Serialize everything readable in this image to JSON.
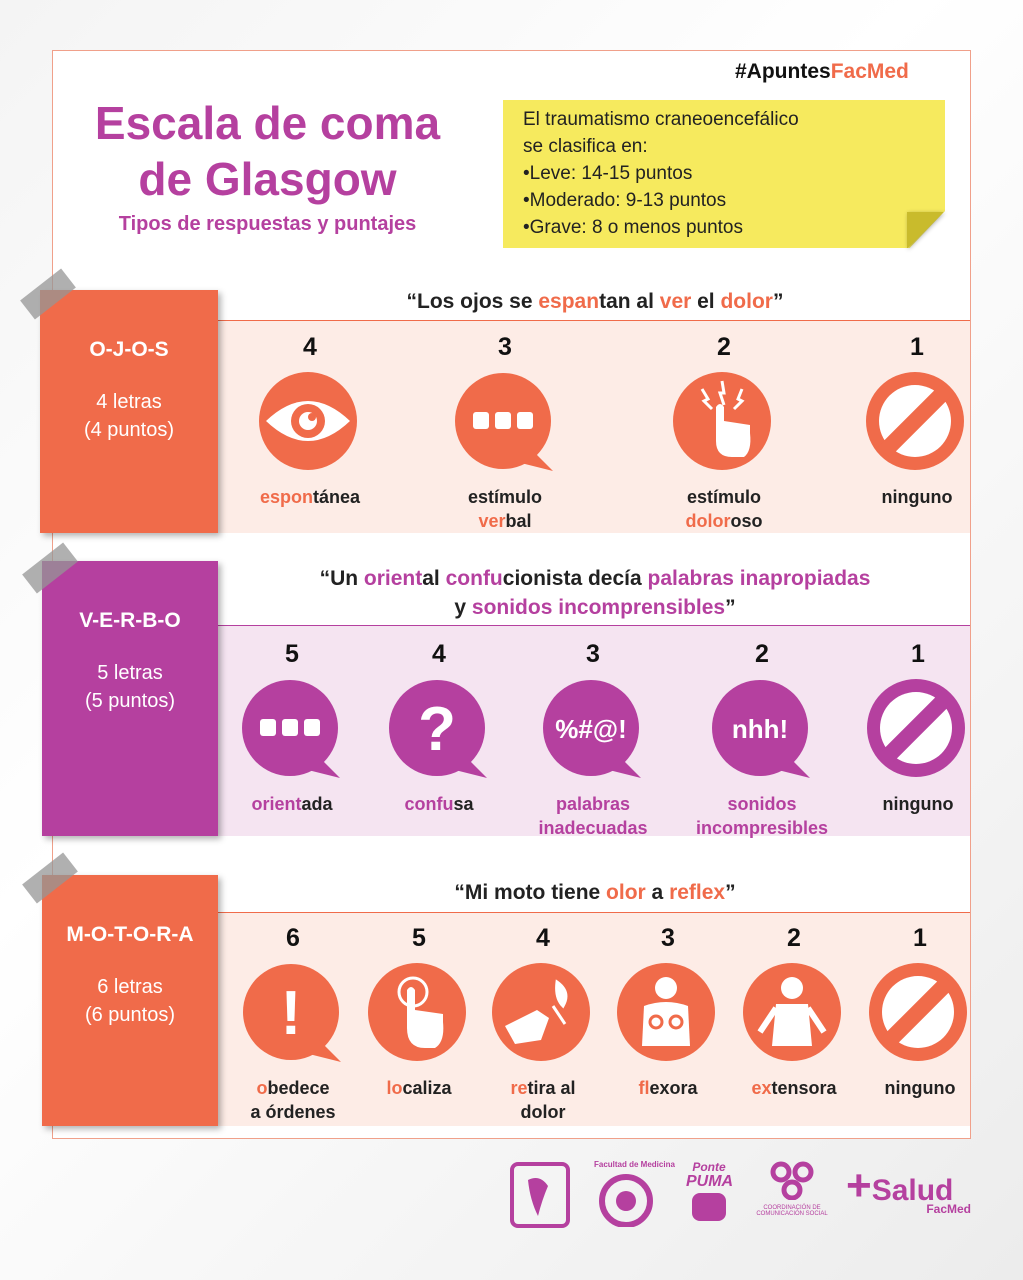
{
  "hashtag": [
    {
      "t": "#Apuntes",
      "c": "#111111"
    },
    {
      "t": "FacMed",
      "c": "#f06b4a"
    }
  ],
  "title": [
    "Escala de coma",
    "de Glasgow"
  ],
  "subtitle": "Tipos de respuestas y puntajes",
  "note": [
    "El traumatismo craneoencefálico",
    "se clasifica en:",
    "•Leve: 14-15 puntos",
    "•Moderado: 9-13 puntos",
    "•Grave: 8 o menos puntos"
  ],
  "colors": {
    "orange": "#f06b4a",
    "purple": "#b5409f",
    "note": "#f6ea5e",
    "orange_band": "#fdece6",
    "purple_band": "#f5e4f1"
  },
  "sections": [
    {
      "key": "ojos",
      "word": "O-J-O-S",
      "letters": "4 letras",
      "points": "(4 puntos)",
      "color": "#f06b4a",
      "band": "#fdece6",
      "quote": [
        [
          {
            "t": "“Los ojos se "
          },
          {
            "t": "espan",
            "h": 1
          },
          {
            "t": "tan al "
          },
          {
            "t": "ver",
            "h": 1
          },
          {
            "t": " el "
          },
          {
            "t": "dolor",
            "h": 1
          },
          {
            "t": "”"
          }
        ]
      ],
      "items": [
        {
          "score": "4",
          "icon": "eye-icon",
          "label": [
            [
              {
                "t": "espon",
                "h": 1
              },
              {
                "t": "tánea"
              }
            ]
          ]
        },
        {
          "score": "3",
          "icon": "speech-bubble-icon",
          "label": [
            [
              {
                "t": "estímulo"
              }
            ],
            [
              {
                "t": "ver",
                "h": 1
              },
              {
                "t": "bal"
              }
            ]
          ]
        },
        {
          "score": "2",
          "icon": "pain-hand-icon",
          "label": [
            [
              {
                "t": "estímulo"
              }
            ],
            [
              {
                "t": "dolor",
                "h": 1
              },
              {
                "t": "oso"
              }
            ]
          ]
        },
        {
          "score": "1",
          "icon": "no-icon",
          "label": [
            [
              {
                "t": "ninguno"
              }
            ]
          ]
        }
      ]
    },
    {
      "key": "verbo",
      "word": "V-E-R-B-O",
      "letters": "5 letras",
      "points": "(5 puntos)",
      "color": "#b5409f",
      "band": "#f5e4f1",
      "quote": [
        [
          {
            "t": "“Un "
          },
          {
            "t": "orient",
            "h": 1
          },
          {
            "t": "al "
          },
          {
            "t": "confu",
            "h": 1
          },
          {
            "t": "cionista decía "
          },
          {
            "t": "palabras inapropiadas",
            "h": 1
          }
        ],
        [
          {
            "t": "y "
          },
          {
            "t": "sonidos incomprensibles",
            "h": 1
          },
          {
            "t": "”"
          }
        ]
      ],
      "items": [
        {
          "score": "5",
          "icon": "speech-bubble-icon",
          "label": [
            [
              {
                "t": "orient",
                "h": 1
              },
              {
                "t": "ada"
              }
            ]
          ]
        },
        {
          "score": "4",
          "icon": "question-bubble-icon",
          "glyph": "?",
          "label": [
            [
              {
                "t": "confu",
                "h": 1
              },
              {
                "t": "sa"
              }
            ]
          ]
        },
        {
          "score": "3",
          "icon": "symbols-bubble-icon",
          "glyph": "%#@!",
          "label": [
            [
              {
                "t": "palabras",
                "h": 1
              }
            ],
            [
              {
                "t": "inadecuadas",
                "h": 1
              }
            ]
          ]
        },
        {
          "score": "2",
          "icon": "sounds-bubble-icon",
          "glyph": "nhh!",
          "label": [
            [
              {
                "t": "sonidos",
                "h": 1
              }
            ],
            [
              {
                "t": "incompresibles",
                "h": 1
              }
            ]
          ]
        },
        {
          "score": "1",
          "icon": "no-icon",
          "label": [
            [
              {
                "t": "ninguno"
              }
            ]
          ]
        }
      ]
    },
    {
      "key": "motora",
      "word": "M-O-T-O-R-A",
      "letters": "6 letras",
      "points": "(6 puntos)",
      "color": "#f06b4a",
      "band": "#fdece6",
      "quote": [
        [
          {
            "t": "“Mi moto tiene "
          },
          {
            "t": "olor",
            "h": 1
          },
          {
            "t": " a "
          },
          {
            "t": "reflex",
            "h": 1
          },
          {
            "t": "”"
          }
        ]
      ],
      "items": [
        {
          "score": "6",
          "icon": "exclamation-bubble-icon",
          "glyph": "!",
          "label": [
            [
              {
                "t": "o",
                "h": 1
              },
              {
                "t": "bedece"
              }
            ],
            [
              {
                "t": "a órdenes"
              }
            ]
          ]
        },
        {
          "score": "5",
          "icon": "touch-hand-icon",
          "label": [
            [
              {
                "t": "lo",
                "h": 1
              },
              {
                "t": "caliza"
              }
            ]
          ]
        },
        {
          "score": "4",
          "icon": "hand-fire-icon",
          "label": [
            [
              {
                "t": "re",
                "h": 1
              },
              {
                "t": "tira al"
              }
            ],
            [
              {
                "t": "dolor"
              }
            ]
          ]
        },
        {
          "score": "3",
          "icon": "flexion-figure-icon",
          "label": [
            [
              {
                "t": "fl",
                "h": 1
              },
              {
                "t": "exora"
              }
            ]
          ]
        },
        {
          "score": "2",
          "icon": "extension-figure-icon",
          "label": [
            [
              {
                "t": "ex",
                "h": 1
              },
              {
                "t": "tensora"
              }
            ]
          ]
        },
        {
          "score": "1",
          "icon": "no-icon",
          "label": [
            [
              {
                "t": "ninguno"
              }
            ]
          ]
        }
      ]
    }
  ],
  "logos": {
    "facultad": "Facultad de Medicina",
    "ponte": "Ponte",
    "puma": "PUMA",
    "coord": [
      "COORDINACIÓN DE",
      "COMUNICACIÓN SOCIAL"
    ],
    "salud": "Salud",
    "facmed": "FacMed"
  }
}
